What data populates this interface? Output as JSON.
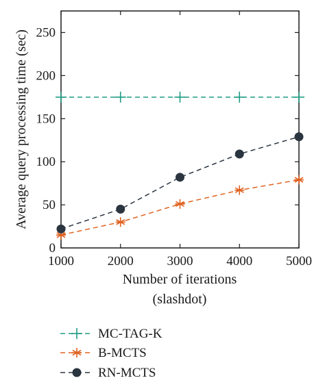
{
  "chart_data": {
    "type": "line",
    "x": [
      1000,
      2000,
      3000,
      4000,
      5000
    ],
    "xlabel": "Number of iterations",
    "xlabel_sub": "(slashdot)",
    "ylabel": "Average query processing time (sec)",
    "xlim": [
      1000,
      5000
    ],
    "ylim": [
      0,
      275
    ],
    "xticks": [
      1000,
      2000,
      3000,
      4000,
      5000
    ],
    "yticks": [
      0,
      50,
      100,
      150,
      200,
      250
    ],
    "grid": false,
    "legend_position": "below plot",
    "series": [
      {
        "name": "MC-TAG-K",
        "values": [
          175,
          175,
          175,
          175,
          175
        ],
        "color": "#1f9c83",
        "marker": "plus",
        "style": "dashed"
      },
      {
        "name": "B-MCTS",
        "values": [
          15,
          30,
          51,
          67,
          79
        ],
        "color": "#e0611f",
        "marker": "asterisk",
        "style": "dashed"
      },
      {
        "name": "RN-MCTS",
        "values": [
          22,
          45,
          82,
          109,
          129
        ],
        "color": "#2b3540",
        "marker": "circle",
        "style": "dashed"
      }
    ]
  }
}
